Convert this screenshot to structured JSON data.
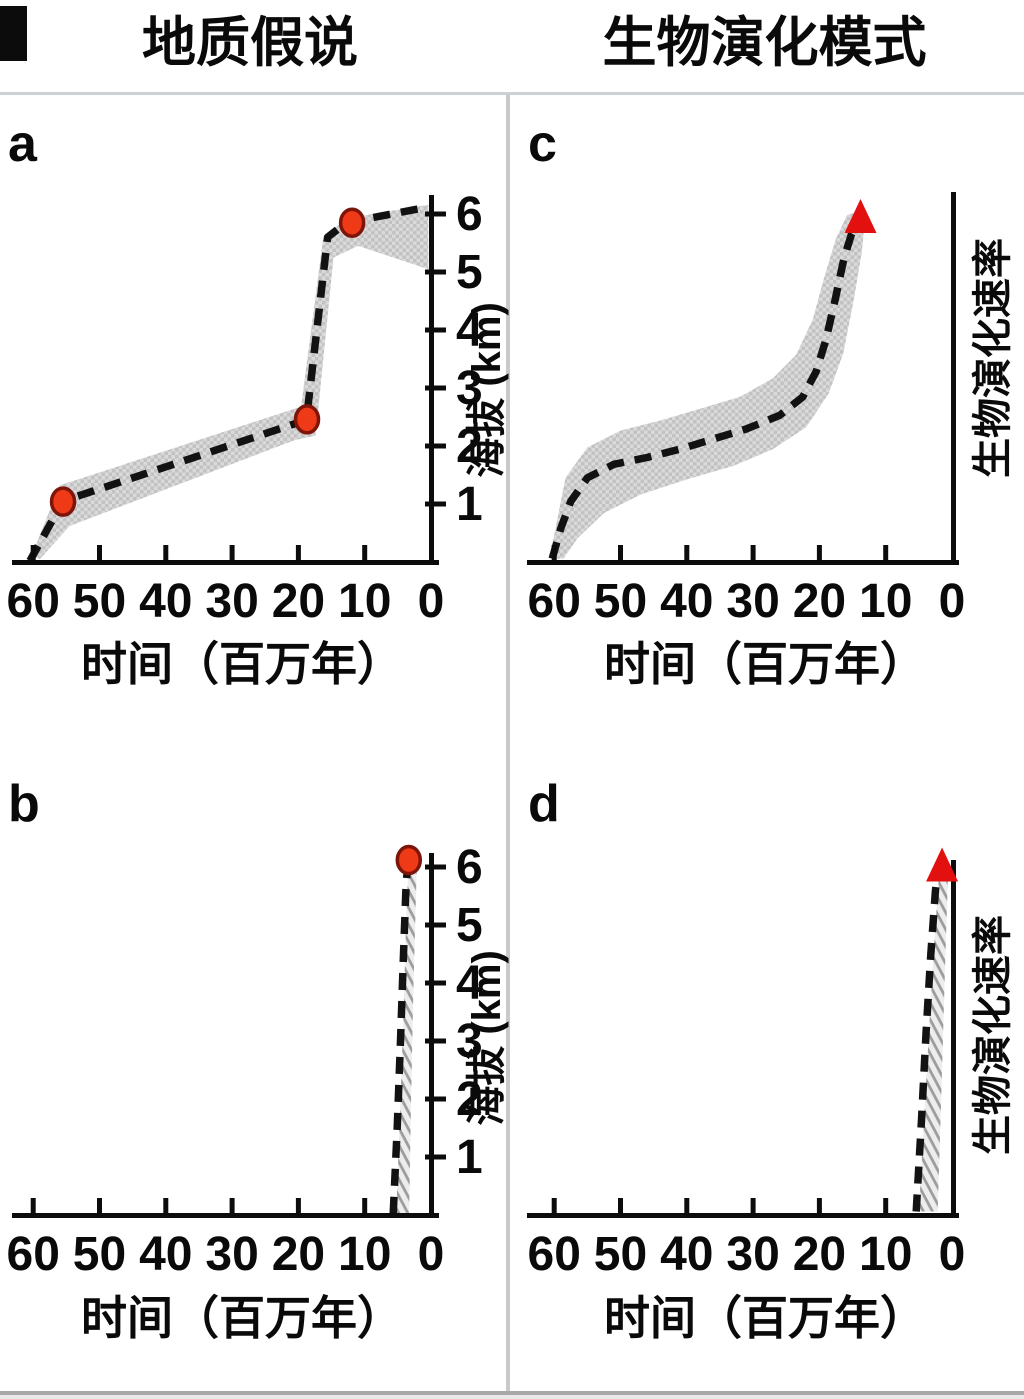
{
  "titles": {
    "left": "地质假说",
    "right": "生物演化模式"
  },
  "colors": {
    "text": "#0a0a0a",
    "line": "#121212",
    "band_checker_bg": "#dadada",
    "band_checker_fg": "#c2c2c2",
    "band_hatch_bg": "#ededed",
    "band_hatch_fg": "#9d9d9d",
    "marker_fill": "#ee3a17",
    "marker_stroke": "#7e150a",
    "triangle": "#e31010",
    "axis": "#0c0c0c",
    "divider": "#c9c9c9"
  },
  "chart_data": [
    {
      "panel": "a",
      "panel_label": "a",
      "type": "line",
      "xlabel": "时间（百万年）",
      "ylabel": "海拔 (km)",
      "x_ticks": [
        60,
        50,
        40,
        30,
        20,
        10,
        0
      ],
      "x_range": [
        60,
        0
      ],
      "x_reversed": true,
      "y_ticks": [
        1,
        2,
        3,
        4,
        5,
        6
      ],
      "y_range": [
        0,
        6.5
      ],
      "y_unit": "km",
      "band_style": "checker",
      "line": [
        [
          60.5,
          0.02
        ],
        [
          55.5,
          1.05
        ],
        [
          18.8,
          2.45
        ],
        [
          15.6,
          5.6
        ],
        [
          12.8,
          5.85
        ],
        [
          0.4,
          6.12
        ]
      ],
      "band": [
        [
          60.2,
          0.12
        ],
        [
          56,
          1.32
        ],
        [
          19.6,
          2.68
        ],
        [
          16.3,
          5.55
        ],
        [
          13,
          5.92
        ],
        [
          0.4,
          6.16
        ],
        [
          0.4,
          5.05
        ],
        [
          11,
          5.45
        ],
        [
          14.7,
          5.25
        ],
        [
          17.4,
          2.18
        ],
        [
          20.6,
          2.1
        ],
        [
          54.5,
          0.62
        ],
        [
          59,
          0.05
        ]
      ],
      "markers": {
        "shape": "circle",
        "points": [
          [
            55.5,
            1.04
          ],
          [
            18.7,
            2.46
          ],
          [
            11.9,
            5.85
          ]
        ]
      }
    },
    {
      "panel": "c",
      "panel_label": "c",
      "type": "line",
      "xlabel": "时间（百万年）",
      "ylabel": "生物演化速率",
      "x_ticks": [
        60,
        50,
        40,
        30,
        20,
        10,
        0
      ],
      "x_range": [
        60,
        0
      ],
      "x_reversed": true,
      "y_ticks": [],
      "y_range": [
        0,
        1.1
      ],
      "y_unit": "relative-rate",
      "band_style": "checker",
      "line": [
        [
          60.3,
          0.01
        ],
        [
          59,
          0.1
        ],
        [
          57.5,
          0.18
        ],
        [
          55,
          0.25
        ],
        [
          51,
          0.29
        ],
        [
          46,
          0.31
        ],
        [
          41,
          0.335
        ],
        [
          36,
          0.365
        ],
        [
          31,
          0.395
        ],
        [
          26,
          0.435
        ],
        [
          22.5,
          0.49
        ],
        [
          20.5,
          0.565
        ],
        [
          19,
          0.66
        ],
        [
          17.6,
          0.78
        ],
        [
          16.3,
          0.9
        ],
        [
          15.2,
          0.97
        ],
        [
          14.3,
          1.0
        ]
      ],
      "band": [
        [
          60.2,
          0.06
        ],
        [
          58.3,
          0.25
        ],
        [
          55,
          0.34
        ],
        [
          50,
          0.39
        ],
        [
          44,
          0.42
        ],
        [
          38,
          0.455
        ],
        [
          32,
          0.49
        ],
        [
          27,
          0.545
        ],
        [
          23.5,
          0.615
        ],
        [
          21,
          0.72
        ],
        [
          19.2,
          0.85
        ],
        [
          17.5,
          0.96
        ],
        [
          15.8,
          1.03
        ],
        [
          14,
          1.04
        ],
        [
          13.2,
          1.0
        ],
        [
          13.6,
          0.92
        ],
        [
          14.8,
          0.78
        ],
        [
          16.4,
          0.62
        ],
        [
          18.6,
          0.5
        ],
        [
          22,
          0.4
        ],
        [
          27,
          0.335
        ],
        [
          33,
          0.285
        ],
        [
          40,
          0.245
        ],
        [
          47,
          0.2
        ],
        [
          52.5,
          0.145
        ],
        [
          56.5,
          0.07
        ],
        [
          58.6,
          0.01
        ],
        [
          60.2,
          0.01
        ]
      ],
      "markers": {
        "shape": "triangle",
        "points": [
          [
            13.8,
            1.0
          ]
        ]
      }
    },
    {
      "panel": "b",
      "panel_label": "b",
      "type": "line",
      "xlabel": "时间（百万年）",
      "ylabel": "海拔 (km)",
      "x_ticks": [
        60,
        50,
        40,
        30,
        20,
        10,
        0
      ],
      "x_range": [
        60,
        0
      ],
      "x_reversed": true,
      "y_ticks": [
        1,
        2,
        3,
        4,
        5,
        6
      ],
      "y_range": [
        0,
        6.5
      ],
      "y_unit": "km",
      "band_style": "hatch",
      "line": [
        [
          5.7,
          0.02
        ],
        [
          5.1,
          1.5
        ],
        [
          4.6,
          3.0
        ],
        [
          4.15,
          4.5
        ],
        [
          3.75,
          5.7
        ],
        [
          3.45,
          6.1
        ]
      ],
      "band": [
        [
          5.25,
          0.02
        ],
        [
          4.7,
          1.7
        ],
        [
          4.2,
          3.3
        ],
        [
          3.7,
          5.3
        ],
        [
          3.42,
          5.95
        ],
        [
          2.15,
          5.95
        ],
        [
          2.65,
          3.9
        ],
        [
          3.0,
          2.0
        ],
        [
          3.3,
          0.02
        ]
      ],
      "markers": {
        "shape": "circle",
        "points": [
          [
            3.35,
            6.12
          ]
        ]
      }
    },
    {
      "panel": "d",
      "panel_label": "d",
      "type": "line",
      "xlabel": "时间（百万年）",
      "ylabel": "生物演化速率",
      "x_ticks": [
        60,
        50,
        40,
        30,
        20,
        10,
        0
      ],
      "x_range": [
        60,
        0
      ],
      "x_reversed": true,
      "y_ticks": [],
      "y_range": [
        0,
        1.1
      ],
      "y_unit": "relative-rate",
      "band_style": "hatch",
      "line": [
        [
          5.4,
          0.01
        ],
        [
          4.6,
          0.27
        ],
        [
          3.9,
          0.52
        ],
        [
          3.2,
          0.74
        ],
        [
          2.5,
          0.92
        ],
        [
          2.0,
          1.0
        ]
      ],
      "band": [
        [
          5.0,
          0.01
        ],
        [
          4.2,
          0.28
        ],
        [
          3.4,
          0.55
        ],
        [
          2.6,
          0.8
        ],
        [
          1.9,
          0.985
        ],
        [
          0.55,
          1.0
        ],
        [
          1.05,
          0.7
        ],
        [
          1.6,
          0.35
        ],
        [
          2.15,
          0.01
        ]
      ],
      "markers": {
        "shape": "triangle",
        "points": [
          [
            1.5,
            0.97
          ]
        ]
      }
    }
  ]
}
